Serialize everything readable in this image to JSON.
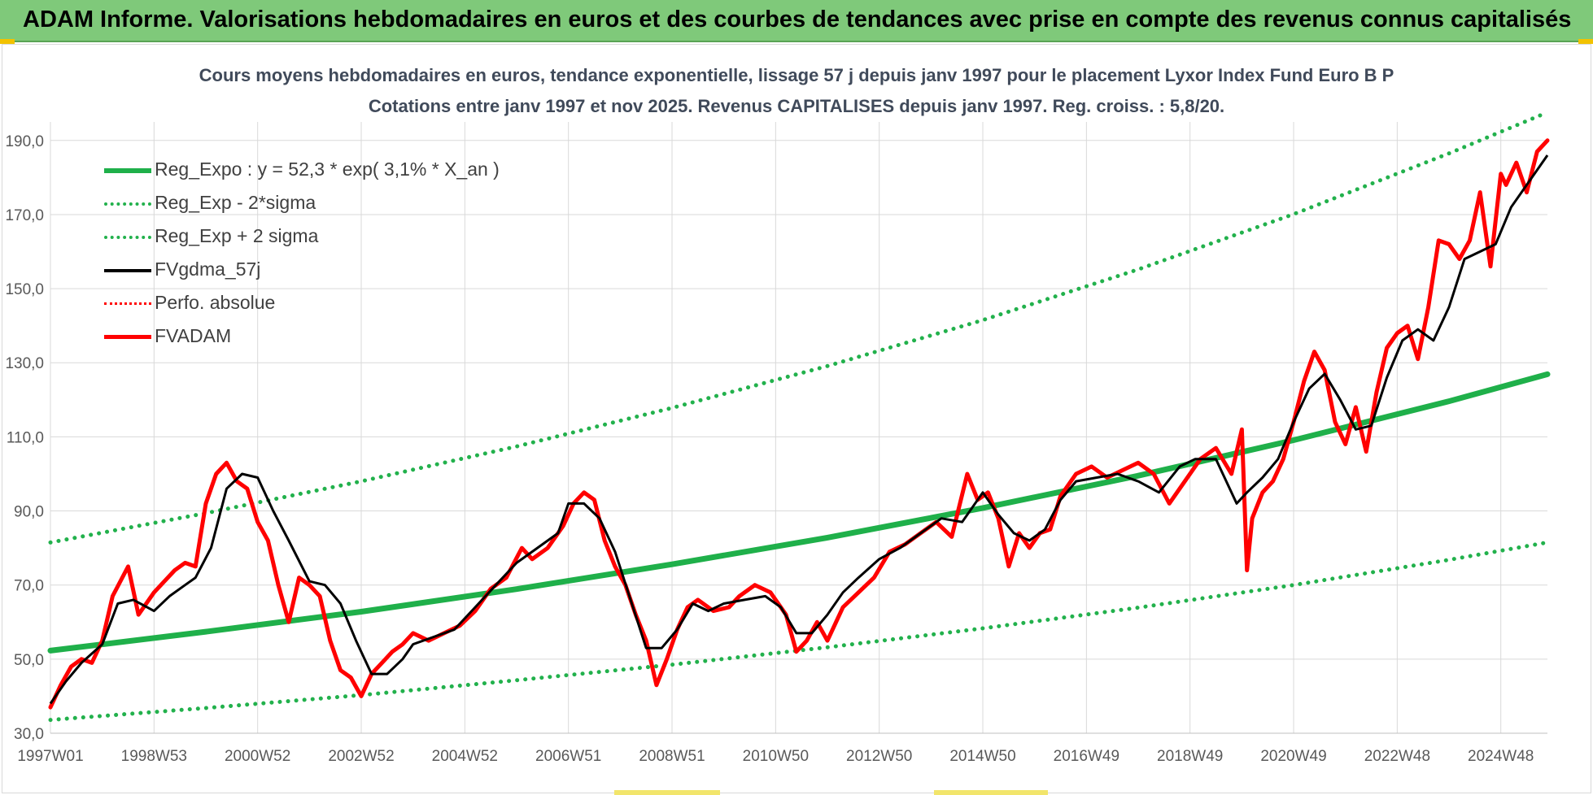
{
  "banner": {
    "title": "ADAM Informe. Valorisations hebdomadaires en euros et des courbes de tendances avec prise en compte des revenus connus capitalisés"
  },
  "colors": {
    "banner_bg": "#7fc97a",
    "reg_green": "#1fb04a",
    "dotted_green": "#22b14c",
    "fvgdma": "#000000",
    "fvadam": "#ff0000",
    "perfo": "#ff0000"
  },
  "chart_data": {
    "type": "line",
    "title": "Cours moyens hebdomadaires en euros, tendance exponentielle, lissage 57 j depuis janv 1997 pour le placement Lyxor Index Fund Euro B P",
    "subtitle": "Cotations entre janv 1997 et nov 2025. Revenus CAPITALISES depuis janv 1997. Reg. croiss. : 5,8/20.",
    "x_range": [
      1997.0,
      2025.9
    ],
    "ylim": [
      30,
      195
    ],
    "yticks": [
      "30,0",
      "50,0",
      "70,0",
      "90,0",
      "110,0",
      "130,0",
      "150,0",
      "170,0",
      "190,0"
    ],
    "ytick_values": [
      30,
      50,
      70,
      90,
      110,
      130,
      150,
      170,
      190
    ],
    "xticks": [
      "1997W01",
      "1998W53",
      "2000W52",
      "2002W52",
      "2004W52",
      "2006W51",
      "2008W51",
      "2010W50",
      "2012W50",
      "2014W50",
      "2016W49",
      "2018W49",
      "2020W49",
      "2022W48",
      "2024W48"
    ],
    "xtick_values": [
      1997.0,
      1999.0,
      2001.0,
      2003.0,
      2005.0,
      2007.0,
      2009.0,
      2011.0,
      2013.0,
      2015.0,
      2017.0,
      2019.0,
      2021.0,
      2023.0,
      2025.0
    ],
    "grid": true,
    "legend_position": "top-left",
    "series": [
      {
        "name": "Reg_Expo : y = 52,3 * exp( 3,1% *  X_an )",
        "style": "solid-thick",
        "color": "#1fb04a",
        "x": [
          1997,
          2000,
          2003,
          2006,
          2009,
          2012,
          2015,
          2018,
          2021,
          2024,
          2025.9
        ],
        "y": [
          52.3,
          57.4,
          62.8,
          68.9,
          75.6,
          82.8,
          90.8,
          99.5,
          109.1,
          119.6,
          126.9
        ]
      },
      {
        "name": "Reg_Exp - 2*sigma",
        "style": "dotted",
        "color": "#22b14c",
        "x": [
          1997,
          2000,
          2003,
          2006,
          2009,
          2012,
          2015,
          2018,
          2021,
          2024,
          2025.9
        ],
        "y": [
          33.6,
          36.8,
          40.3,
          44.3,
          48.5,
          53.2,
          58.3,
          63.9,
          70.0,
          76.8,
          81.5
        ]
      },
      {
        "name": "Reg_Exp + 2 sigma",
        "style": "dotted",
        "color": "#22b14c",
        "x": [
          1997,
          2000,
          2003,
          2006,
          2009,
          2012,
          2015,
          2018,
          2021,
          2024,
          2025.9
        ],
        "y": [
          81.5,
          89.4,
          98.0,
          107.4,
          117.8,
          129.1,
          141.5,
          155.2,
          170.1,
          186.5,
          197.6
        ]
      },
      {
        "name": "FVgdma_57j",
        "style": "solid",
        "color": "#000000",
        "x": [
          1997.0,
          1997.3,
          1997.6,
          1998.0,
          1998.3,
          1998.6,
          1999.0,
          1999.3,
          1999.6,
          1999.8,
          2000.1,
          2000.4,
          2000.7,
          2001.0,
          2001.3,
          2001.6,
          2002.0,
          2002.3,
          2002.6,
          2002.9,
          2003.2,
          2003.5,
          2003.8,
          2004.0,
          2004.4,
          2004.8,
          2005.2,
          2005.6,
          2006.0,
          2006.4,
          2006.8,
          2007.0,
          2007.3,
          2007.6,
          2007.9,
          2008.2,
          2008.5,
          2008.8,
          2009.1,
          2009.4,
          2009.7,
          2010.0,
          2010.4,
          2010.8,
          2011.1,
          2011.4,
          2011.7,
          2012.0,
          2012.3,
          2012.6,
          2013.0,
          2013.4,
          2013.8,
          2014.2,
          2014.6,
          2015.0,
          2015.3,
          2015.6,
          2015.9,
          2016.2,
          2016.5,
          2016.8,
          2017.2,
          2017.6,
          2018.0,
          2018.4,
          2018.8,
          2019.1,
          2019.5,
          2019.9,
          2020.1,
          2020.4,
          2020.7,
          2021.0,
          2021.3,
          2021.6,
          2021.9,
          2022.2,
          2022.5,
          2022.8,
          2023.1,
          2023.4,
          2023.7,
          2024.0,
          2024.3,
          2024.6,
          2024.9,
          2025.2,
          2025.5,
          2025.9
        ],
        "y": [
          38,
          44,
          49,
          54,
          65,
          66,
          63,
          67,
          70,
          72,
          80,
          96,
          100,
          99,
          90,
          82,
          71,
          70,
          65,
          55,
          46,
          46,
          50,
          54,
          56,
          58,
          64,
          70,
          76,
          80,
          84,
          92,
          92,
          88,
          79,
          66,
          53,
          53,
          58,
          65,
          63,
          65,
          66,
          67,
          64,
          57,
          57,
          62,
          68,
          72,
          77,
          80,
          84,
          88,
          87,
          95,
          89,
          84,
          82,
          85,
          93,
          98,
          99,
          100,
          98,
          95,
          102,
          104,
          104,
          92,
          95,
          99,
          104,
          114,
          123,
          127,
          120,
          112,
          113,
          126,
          136,
          139,
          136,
          145,
          158,
          160,
          162,
          172,
          178,
          186
        ]
      },
      {
        "name": "Perfo. absolue",
        "style": "dotted",
        "color": "#ff0000",
        "x": [],
        "y": []
      },
      {
        "name": "FVADAM",
        "style": "solid-thick",
        "color": "#ff0000",
        "x": [
          1997.0,
          1997.2,
          1997.4,
          1997.6,
          1997.8,
          1998.0,
          1998.2,
          1998.5,
          1998.7,
          1999.0,
          1999.2,
          1999.4,
          1999.6,
          1999.8,
          2000.0,
          2000.2,
          2000.4,
          2000.6,
          2000.8,
          2001.0,
          2001.2,
          2001.4,
          2001.6,
          2001.8,
          2002.0,
          2002.2,
          2002.4,
          2002.6,
          2002.8,
          2003.0,
          2003.2,
          2003.4,
          2003.6,
          2003.8,
          2004.0,
          2004.3,
          2004.6,
          2004.9,
          2005.2,
          2005.5,
          2005.8,
          2006.1,
          2006.3,
          2006.6,
          2006.9,
          2007.1,
          2007.3,
          2007.5,
          2007.7,
          2007.9,
          2008.1,
          2008.3,
          2008.5,
          2008.7,
          2008.9,
          2009.1,
          2009.3,
          2009.5,
          2009.8,
          2010.1,
          2010.3,
          2010.6,
          2010.9,
          2011.2,
          2011.4,
          2011.6,
          2011.8,
          2012.0,
          2012.3,
          2012.6,
          2012.9,
          2013.2,
          2013.5,
          2013.8,
          2014.1,
          2014.4,
          2014.7,
          2014.9,
          2015.1,
          2015.3,
          2015.5,
          2015.7,
          2015.9,
          2016.1,
          2016.3,
          2016.5,
          2016.8,
          2017.1,
          2017.4,
          2017.7,
          2018.0,
          2018.3,
          2018.6,
          2018.9,
          2019.2,
          2019.5,
          2019.8,
          2020.0,
          2020.1,
          2020.2,
          2020.4,
          2020.6,
          2020.8,
          2021.0,
          2021.2,
          2021.4,
          2021.6,
          2021.8,
          2022.0,
          2022.2,
          2022.4,
          2022.6,
          2022.8,
          2023.0,
          2023.2,
          2023.4,
          2023.6,
          2023.8,
          2024.0,
          2024.2,
          2024.4,
          2024.6,
          2024.8,
          2025.0,
          2025.1,
          2025.3,
          2025.5,
          2025.7,
          2025.9
        ],
        "y": [
          37,
          43,
          48,
          50,
          49,
          55,
          67,
          75,
          62,
          68,
          71,
          74,
          76,
          75,
          92,
          100,
          103,
          98,
          96,
          87,
          82,
          70,
          60,
          72,
          70,
          67,
          55,
          47,
          45,
          40,
          46,
          49,
          52,
          54,
          57,
          55,
          57,
          59,
          63,
          69,
          72,
          80,
          77,
          80,
          86,
          92,
          95,
          93,
          82,
          75,
          70,
          62,
          55,
          43,
          50,
          58,
          64,
          66,
          63,
          64,
          67,
          70,
          68,
          62,
          52,
          55,
          60,
          55,
          64,
          68,
          72,
          79,
          81,
          84,
          87,
          83,
          100,
          93,
          95,
          88,
          75,
          84,
          80,
          84,
          85,
          94,
          100,
          102,
          99,
          101,
          103,
          100,
          92,
          98,
          104,
          107,
          100,
          112,
          74,
          88,
          95,
          98,
          104,
          114,
          125,
          133,
          128,
          114,
          108,
          118,
          106,
          122,
          134,
          138,
          140,
          131,
          145,
          163,
          162,
          158,
          163,
          176,
          156,
          181,
          178,
          184,
          176,
          187,
          190
        ]
      }
    ]
  }
}
